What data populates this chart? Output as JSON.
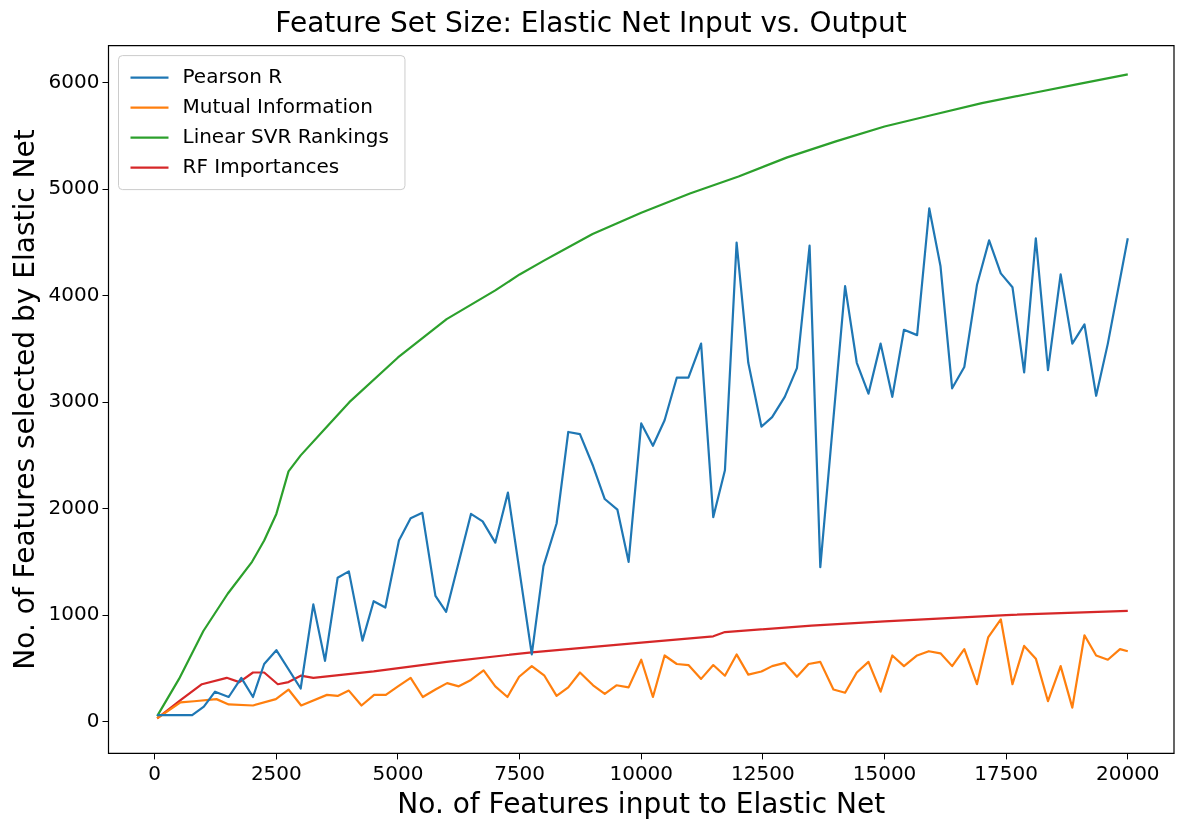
{
  "chart_data": {
    "type": "line",
    "title": "Feature Set Size: Elastic Net Input vs. Output",
    "xlabel": "No. of Features input to Elastic Net",
    "ylabel": "No. of Features selected by Elastic Net",
    "xlim": [
      -950,
      20950
    ],
    "ylim": [
      -300,
      6350
    ],
    "xticks": [
      0,
      2500,
      5000,
      7500,
      10000,
      12500,
      15000,
      17500,
      20000
    ],
    "yticks": [
      0,
      1000,
      2000,
      3000,
      4000,
      5000,
      6000
    ],
    "grid": false,
    "legend": "top left",
    "marker": "none",
    "line_style": "solid",
    "series": [
      {
        "name": "Pearson R",
        "color": "#1f77b4",
        "x": [
          50,
          770,
          1010,
          1240,
          1520,
          1780,
          2020,
          2250,
          2500,
          3000,
          3260,
          3500,
          3760,
          3990,
          4270,
          4500,
          4740,
          5020,
          5260,
          5500,
          5770,
          5990,
          6500,
          6740,
          7000,
          7260,
          7750,
          7990,
          8260,
          8500,
          8740,
          9010,
          9250,
          9510,
          9740,
          10000,
          10240,
          10480,
          10730,
          10970,
          11230,
          11480,
          11720,
          11960,
          12200,
          12470,
          12690,
          12950,
          13200,
          13460,
          13680,
          14190,
          14430,
          14670,
          14920,
          15160,
          15400,
          15670,
          15920,
          16150,
          16390,
          16640,
          16900,
          17150,
          17390,
          17630,
          17870,
          18110,
          18360,
          18620,
          18860,
          19110,
          19350,
          19590,
          20000
        ],
        "values": [
          60,
          60,
          140,
          280,
          230,
          410,
          230,
          540,
          670,
          310,
          1100,
          570,
          1350,
          1410,
          760,
          1130,
          1070,
          1700,
          1910,
          1960,
          1180,
          1030,
          1950,
          1880,
          1680,
          2150,
          630,
          1460,
          1860,
          2720,
          2700,
          2400,
          2090,
          1990,
          1500,
          2800,
          2590,
          2830,
          3230,
          3230,
          3550,
          1920,
          2360,
          4500,
          3370,
          2770,
          2860,
          3050,
          3320,
          4470,
          1450,
          4090,
          3370,
          3080,
          3550,
          3050,
          3680,
          3630,
          4820,
          4280,
          3130,
          3330,
          4100,
          4520,
          4210,
          4080,
          3280,
          4540,
          3300,
          4200,
          3550,
          3730,
          3060,
          3550,
          4540
        ]
      },
      {
        "name": "Mutual Information",
        "color": "#ff7f0e",
        "x": [
          50,
          530,
          810,
          1270,
          1520,
          2020,
          2490,
          2750,
          3010,
          3540,
          3760,
          3990,
          4250,
          4510,
          4750,
          5000,
          5260,
          5510,
          5770,
          6010,
          6250,
          6500,
          6760,
          7000,
          7250,
          7490,
          7750,
          8010,
          8260,
          8500,
          8740,
          9010,
          9250,
          9490,
          9740,
          10000,
          10240,
          10480,
          10730,
          10970,
          11230,
          11480,
          11720,
          11960,
          12200,
          12470,
          12690,
          12950,
          13200,
          13440,
          13680,
          13950,
          14190,
          14430,
          14670,
          14920,
          15160,
          15400,
          15670,
          15910,
          16150,
          16390,
          16640,
          16900,
          17130,
          17390,
          17630,
          17870,
          18110,
          18360,
          18620,
          18860,
          19110,
          19350,
          19590,
          19840,
          20000
        ],
        "values": [
          30,
          180,
          190,
          210,
          160,
          150,
          210,
          300,
          150,
          250,
          240,
          290,
          150,
          250,
          250,
          330,
          410,
          230,
          300,
          360,
          330,
          390,
          480,
          330,
          230,
          420,
          520,
          430,
          240,
          320,
          460,
          340,
          260,
          340,
          320,
          580,
          230,
          620,
          540,
          530,
          400,
          530,
          430,
          630,
          440,
          470,
          520,
          550,
          420,
          540,
          560,
          300,
          270,
          460,
          560,
          280,
          620,
          520,
          620,
          660,
          640,
          520,
          680,
          350,
          790,
          960,
          350,
          710,
          590,
          190,
          520,
          130,
          810,
          620,
          580,
          680,
          660
        ]
      },
      {
        "name": "Linear SVR Rankings",
        "color": "#2ca02c",
        "x": [
          50,
          500,
          1000,
          1500,
          2000,
          2250,
          2500,
          2750,
          3000,
          3500,
          4000,
          5000,
          6000,
          7000,
          7500,
          8000,
          9000,
          10000,
          11000,
          12000,
          13000,
          14000,
          15000,
          16000,
          17000,
          18000,
          19000,
          20000
        ],
        "values": [
          50,
          400,
          850,
          1200,
          1500,
          1700,
          1950,
          2350,
          2500,
          2750,
          3000,
          3420,
          3780,
          4050,
          4200,
          4330,
          4580,
          4780,
          4960,
          5120,
          5300,
          5450,
          5590,
          5700,
          5810,
          5900,
          5990,
          6080
        ]
      },
      {
        "name": "RF Importances",
        "color": "#d62728",
        "x": [
          50,
          530,
          970,
          1480,
          1740,
          2020,
          2250,
          2530,
          2750,
          3000,
          3260,
          4500,
          6000,
          7750,
          10000,
          11480,
          11720,
          13500,
          15000,
          17500,
          20000
        ],
        "values": [
          30,
          200,
          350,
          410,
          370,
          460,
          460,
          350,
          370,
          430,
          410,
          470,
          560,
          650,
          740,
          800,
          840,
          900,
          940,
          1000,
          1040
        ]
      }
    ]
  }
}
